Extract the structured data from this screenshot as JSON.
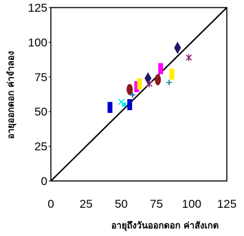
{
  "chart_data": {
    "type": "scatter",
    "title": "",
    "xlabel": "อายุถึงวันออกดอก ค่าสังเกต",
    "ylabel": "อายุออกดอก ค่าจำลอง",
    "xlim": [
      0,
      125
    ],
    "ylim": [
      0,
      125
    ],
    "x_ticks": [
      "0",
      "25",
      "50",
      "75",
      "100",
      "125"
    ],
    "y_ticks": [
      "0",
      "25",
      "50",
      "75",
      "100",
      "125"
    ],
    "grid": false,
    "reference_line": {
      "from": [
        0,
        0
      ],
      "to": [
        125,
        125
      ]
    },
    "points": [
      {
        "x": 42,
        "y": 53,
        "marker": "bar",
        "color": "#0000cc"
      },
      {
        "x": 50,
        "y": 57,
        "marker": "x",
        "color": "#00e5ee"
      },
      {
        "x": 52,
        "y": 55,
        "marker": "square",
        "color": "#00e5ee"
      },
      {
        "x": 56,
        "y": 55,
        "marker": "bar",
        "color": "#0000cc"
      },
      {
        "x": 56,
        "y": 66,
        "marker": "ellipse",
        "color": "#8b1a1a"
      },
      {
        "x": 58,
        "y": 62,
        "marker": "plus",
        "color": "#1a4fa0"
      },
      {
        "x": 61,
        "y": 68,
        "marker": "bar",
        "color": "#ff00ff"
      },
      {
        "x": 63,
        "y": 70,
        "marker": "bar",
        "color": "#ffee00"
      },
      {
        "x": 69,
        "y": 74,
        "marker": "diamond",
        "color": "#1a1a66"
      },
      {
        "x": 70,
        "y": 70,
        "marker": "star",
        "color": "#8b1a6b"
      },
      {
        "x": 76,
        "y": 73,
        "marker": "ellipse",
        "color": "#8b1a1a"
      },
      {
        "x": 78,
        "y": 81,
        "marker": "bar",
        "color": "#ff00ff"
      },
      {
        "x": 84,
        "y": 71,
        "marker": "plus",
        "color": "#008b8b"
      },
      {
        "x": 86,
        "y": 77,
        "marker": "bar",
        "color": "#ffee00"
      },
      {
        "x": 90,
        "y": 96,
        "marker": "diamond",
        "color": "#1a1a66"
      },
      {
        "x": 98,
        "y": 89,
        "marker": "star",
        "color": "#8b1a6b"
      }
    ]
  }
}
